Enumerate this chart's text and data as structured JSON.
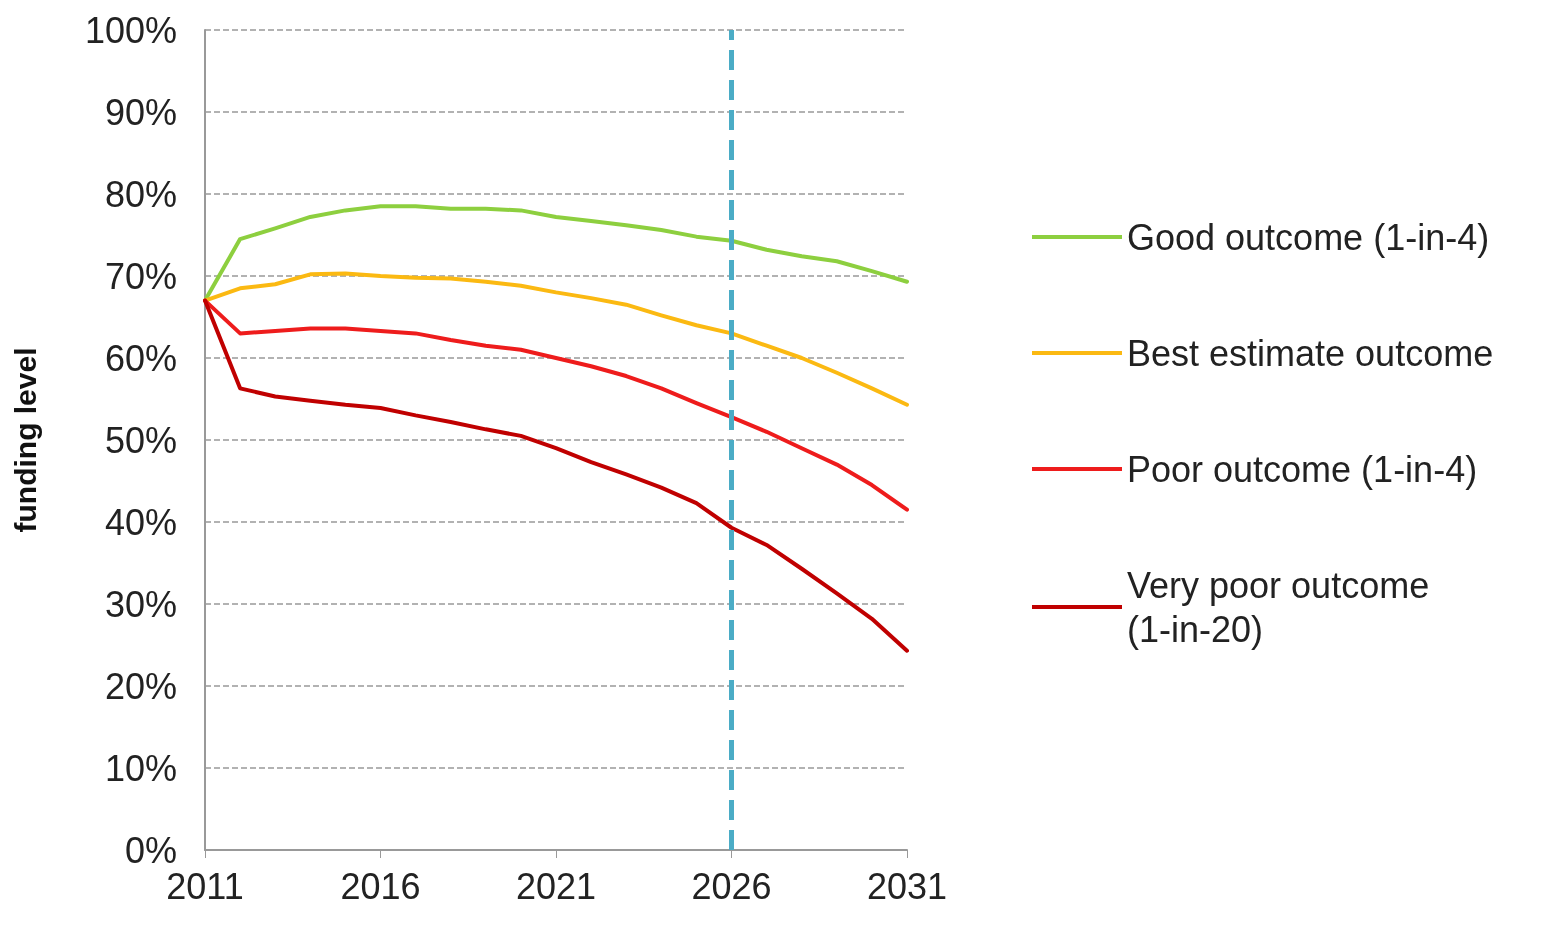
{
  "chart_data": {
    "type": "line",
    "ylabel": "funding level",
    "x": [
      2011,
      2012,
      2013,
      2014,
      2015,
      2016,
      2017,
      2018,
      2019,
      2020,
      2021,
      2022,
      2023,
      2024,
      2025,
      2026,
      2027,
      2028,
      2029,
      2030,
      2031
    ],
    "series": [
      {
        "name": "Good outcome (1-in-4)",
        "color": "#8dcf3f",
        "values": [
          67,
          74.5,
          75.8,
          77.2,
          78,
          78.5,
          78.5,
          78.2,
          78.2,
          78,
          77.2,
          76.7,
          76.2,
          75.6,
          74.8,
          74.3,
          73.2,
          72.4,
          71.8,
          70.6,
          69.3
        ]
      },
      {
        "name": "Best estimate outcome",
        "color": "#fbb912",
        "values": [
          67,
          68.5,
          69,
          70.2,
          70.3,
          70,
          69.8,
          69.7,
          69.3,
          68.8,
          68,
          67.3,
          66.5,
          65.2,
          64,
          63,
          61.5,
          60,
          58.2,
          56.3,
          54.3
        ]
      },
      {
        "name": "Poor outcome (1-in-4)",
        "color": "#ee1c1c",
        "values": [
          67,
          63,
          63.3,
          63.6,
          63.6,
          63.3,
          63,
          62.2,
          61.5,
          61,
          60,
          59,
          57.8,
          56.3,
          54.5,
          52.8,
          51,
          49,
          47,
          44.5,
          41.5
        ]
      },
      {
        "name": "Very poor outcome (1-in-20)",
        "color": "#c00000",
        "values": [
          67,
          56.3,
          55.3,
          54.8,
          54.3,
          53.9,
          53,
          52.2,
          51.3,
          50.5,
          49,
          47.3,
          45.8,
          44.2,
          42.3,
          39.3,
          37.2,
          34.3,
          31.3,
          28.2,
          24.3
        ]
      }
    ],
    "xlim": [
      2011,
      2031
    ],
    "xticks": [
      2011,
      2016,
      2021,
      2026,
      2031
    ],
    "ylim": [
      0,
      100
    ],
    "yticks": [
      {
        "value": 0,
        "label": "0%"
      },
      {
        "value": 10,
        "label": "10%"
      },
      {
        "value": 20,
        "label": "20%"
      },
      {
        "value": 30,
        "label": "30%"
      },
      {
        "value": 40,
        "label": "40%"
      },
      {
        "value": 50,
        "label": "50%"
      },
      {
        "value": 60,
        "label": "60%"
      },
      {
        "value": 70,
        "label": "70%"
      },
      {
        "value": 80,
        "label": "80%"
      },
      {
        "value": 90,
        "label": "90%"
      },
      {
        "value": 100,
        "label": "100%"
      }
    ],
    "ref_lines": [
      {
        "axis": "x",
        "value": 2026,
        "color": "#4bacc6",
        "line_style": "dashed"
      }
    ],
    "grid": "y",
    "legend": "right",
    "marker": "none",
    "line_style": "solid"
  }
}
